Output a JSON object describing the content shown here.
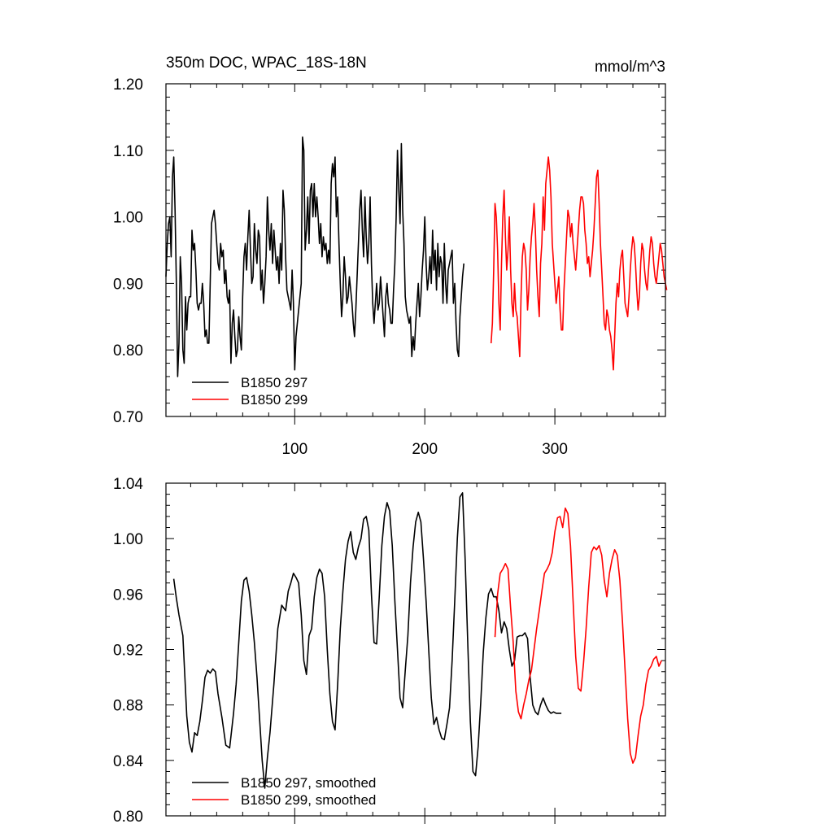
{
  "chart_data": [
    {
      "type": "line",
      "title": "350m DOC, WPAC_18S-18N",
      "units": "mmol/m^3",
      "xlim": [
        1,
        385
      ],
      "ylim": [
        0.7,
        1.2
      ],
      "yticks": [
        "0.70",
        "0.80",
        "0.90",
        "1.00",
        "1.10",
        "1.20"
      ],
      "xticks": [
        "100",
        "200",
        "300"
      ],
      "legend_position": "bottom-left",
      "series": [
        {
          "name": "B1850 297",
          "color": "#000000",
          "x_start": 1,
          "values": [
            0.91,
            0.96,
            0.99,
            1.0,
            0.94,
            1.06,
            1.09,
            1.01,
            0.9,
            0.76,
            0.81,
            0.94,
            0.9,
            0.8,
            0.78,
            0.88,
            0.83,
            0.87,
            0.88,
            0.88,
            0.98,
            0.95,
            0.96,
            0.92,
            0.87,
            0.86,
            0.87,
            0.87,
            0.9,
            0.87,
            0.82,
            0.83,
            0.81,
            0.81,
            0.9,
            0.99,
            1.0,
            1.01,
            0.99,
            0.96,
            0.93,
            0.92,
            0.96,
            0.94,
            0.95,
            0.9,
            0.92,
            0.88,
            0.87,
            0.89,
            0.78,
            0.84,
            0.86,
            0.82,
            0.79,
            0.8,
            0.85,
            0.82,
            0.8,
            0.88,
            0.94,
            0.96,
            0.92,
            0.97,
            1.01,
            0.95,
            0.9,
            0.91,
            0.99,
            0.95,
            0.93,
            0.98,
            0.97,
            0.89,
            0.92,
            0.87,
            0.9,
            0.94,
            1.03,
            0.98,
            0.95,
            0.99,
            0.93,
            0.98,
            0.95,
            0.92,
            0.94,
            0.9,
            0.96,
            0.92,
            1.04,
            1.01,
            0.94,
            0.89,
            0.88,
            0.87,
            0.86,
            0.92,
            0.87,
            0.77,
            0.82,
            0.84,
            0.86,
            0.88,
            0.9,
            1.12,
            1.1,
            0.95,
            0.98,
            1.03,
            0.96,
            1.04,
            1.05,
            1.0,
            1.05,
            1.0,
            1.03,
            1.0,
            0.96,
            0.99,
            0.94,
            0.97,
            0.95,
            0.96,
            0.93,
            0.95,
            0.93,
            1.05,
            1.08,
            1.06,
            1.09,
            1.0,
            1.03,
            0.96,
            0.9,
            0.85,
            0.88,
            0.94,
            0.91,
            0.87,
            0.88,
            0.91,
            0.89,
            0.87,
            0.84,
            0.82,
            0.86,
            0.91,
            0.96,
            1.01,
            1.04,
            0.98,
            0.94,
            1.03,
            0.97,
            0.93,
            0.96,
            1.03,
            0.93,
            0.87,
            0.84,
            0.87,
            0.9,
            0.86,
            0.87,
            0.91,
            0.88,
            0.85,
            0.82,
            0.88,
            0.9,
            0.87,
            0.86,
            0.84,
            0.84,
            0.89,
            0.93,
            1.0,
            1.1,
            1.04,
            0.99,
            1.11,
            1.01,
            0.96,
            0.88,
            0.86,
            0.85,
            0.84,
            0.85,
            0.79,
            0.82,
            0.8,
            0.84,
            0.87,
            0.9,
            0.85,
            0.88,
            0.92,
            0.95,
            1.0,
            0.93,
            0.89,
            0.91,
            0.94,
            0.9,
            0.98,
            0.92,
            0.95,
            0.89,
            0.96,
            0.91,
            0.94,
            0.93,
            0.87,
            0.96,
            0.9,
            0.87,
            0.92,
            0.93,
            0.94,
            0.95,
            0.87,
            0.9,
            0.84,
            0.8,
            0.79,
            0.85,
            0.88,
            0.91,
            0.93
          ]
        },
        {
          "name": "B1850 299",
          "color": "#ff0000",
          "x_start": 251,
          "values": [
            0.81,
            0.84,
            0.92,
            1.02,
            1.0,
            0.95,
            0.87,
            0.83,
            0.93,
            1.0,
            1.04,
            0.97,
            0.92,
            0.95,
            1.0,
            0.92,
            0.87,
            0.85,
            0.9,
            0.86,
            0.85,
            0.82,
            0.79,
            0.88,
            0.94,
            0.96,
            0.95,
            0.92,
            0.86,
            0.89,
            0.94,
            0.97,
            0.99,
            1.02,
            0.98,
            0.92,
            0.88,
            0.85,
            0.93,
            0.96,
            1.03,
            0.98,
            1.05,
            1.07,
            1.09,
            1.07,
            1.03,
            0.96,
            0.93,
            0.9,
            0.87,
            0.89,
            0.91,
            0.86,
            0.83,
            0.83,
            0.89,
            0.93,
            0.97,
            1.01,
            1.0,
            0.97,
            0.99,
            0.96,
            0.94,
            0.92,
            0.95,
            0.98,
            1.01,
            1.03,
            1.03,
            1.02,
            0.98,
            0.96,
            0.93,
            0.94,
            0.91,
            0.93,
            0.95,
            0.98,
            1.02,
            1.06,
            1.07,
            1.02,
            0.96,
            0.92,
            0.88,
            0.84,
            0.83,
            0.86,
            0.85,
            0.83,
            0.82,
            0.8,
            0.77,
            0.82,
            0.87,
            0.9,
            0.88,
            0.92,
            0.94,
            0.95,
            0.91,
            0.87,
            0.86,
            0.85,
            0.88,
            0.92,
            0.95,
            0.97,
            0.96,
            0.93,
            0.89,
            0.86,
            0.88,
            0.93,
            0.96,
            0.95,
            0.92,
            0.9,
            0.89,
            0.92,
            0.95,
            0.97,
            0.96,
            0.93,
            0.91,
            0.9,
            0.92,
            0.94,
            0.96,
            0.95,
            0.93,
            0.91,
            0.9,
            0.89
          ]
        }
      ]
    },
    {
      "type": "line",
      "title": "",
      "xlim": [
        1,
        385
      ],
      "ylim": [
        0.8,
        1.04
      ],
      "yticks": [
        "0.80",
        "0.84",
        "0.88",
        "0.92",
        "0.96",
        "1.00",
        "1.04"
      ],
      "xticks": [],
      "legend_position": "bottom-left",
      "series": [
        {
          "name": "B1850 297, smoothed",
          "color": "#000000",
          "x": [
            7,
            9,
            11,
            14,
            17,
            19,
            21,
            23,
            25,
            27,
            29,
            31,
            33,
            35,
            37,
            39,
            41,
            44,
            47,
            50,
            53,
            55,
            57,
            59,
            61,
            63,
            65,
            67,
            69,
            71,
            73,
            75,
            77,
            79,
            81,
            84,
            87,
            90,
            93,
            95,
            97,
            99,
            101,
            103,
            105,
            107,
            109,
            111,
            113,
            115,
            117,
            119,
            121,
            123,
            125,
            127,
            129,
            131,
            133,
            135,
            137,
            139,
            141,
            143,
            145,
            147,
            149,
            151,
            153,
            155,
            157,
            159,
            161,
            163,
            165,
            167,
            169,
            171,
            173,
            175,
            177,
            179,
            181,
            183,
            185,
            187,
            189,
            191,
            193,
            195,
            197,
            199,
            201,
            203,
            205,
            207,
            209,
            211,
            213,
            215,
            217,
            219,
            221,
            223,
            225,
            227,
            229,
            231,
            233,
            235,
            237,
            239,
            241,
            243,
            245,
            247,
            249,
            251,
            253,
            255,
            257,
            259,
            261,
            263,
            265,
            267,
            269,
            271,
            273,
            275,
            277,
            279,
            281,
            283,
            285,
            287,
            289,
            291,
            293,
            295,
            297,
            299,
            301,
            303,
            305
          ],
          "values": [
            0.971,
            0.957,
            0.945,
            0.93,
            0.872,
            0.853,
            0.846,
            0.86,
            0.858,
            0.868,
            0.883,
            0.9,
            0.905,
            0.903,
            0.906,
            0.904,
            0.888,
            0.871,
            0.851,
            0.849,
            0.874,
            0.895,
            0.925,
            0.955,
            0.97,
            0.972,
            0.962,
            0.945,
            0.925,
            0.9,
            0.87,
            0.84,
            0.82,
            0.842,
            0.86,
            0.895,
            0.935,
            0.952,
            0.948,
            0.962,
            0.968,
            0.975,
            0.972,
            0.968,
            0.945,
            0.912,
            0.902,
            0.93,
            0.935,
            0.958,
            0.972,
            0.978,
            0.975,
            0.958,
            0.92,
            0.888,
            0.868,
            0.862,
            0.895,
            0.935,
            0.962,
            0.985,
            0.998,
            1.005,
            0.99,
            0.985,
            0.994,
            1.0,
            1.014,
            1.016,
            1.006,
            0.96,
            0.925,
            0.924,
            0.958,
            0.995,
            1.016,
            1.026,
            1.02,
            0.995,
            0.955,
            0.92,
            0.885,
            0.878,
            0.905,
            0.93,
            0.968,
            0.994,
            1.012,
            1.019,
            1.012,
            0.985,
            0.955,
            0.92,
            0.885,
            0.866,
            0.871,
            0.862,
            0.856,
            0.855,
            0.866,
            0.878,
            0.912,
            0.955,
            1.0,
            1.03,
            1.033,
            0.985,
            0.925,
            0.868,
            0.832,
            0.829,
            0.85,
            0.881,
            0.918,
            0.943,
            0.96,
            0.964,
            0.958,
            0.958,
            0.948,
            0.932,
            0.94,
            0.935,
            0.92,
            0.908,
            0.912,
            0.929,
            0.93,
            0.93,
            0.932,
            0.928,
            0.9,
            0.88,
            0.875,
            0.873,
            0.88,
            0.885,
            0.88,
            0.876,
            0.874,
            0.875,
            0.874,
            0.874,
            0.874
          ]
        },
        {
          "name": "B1850 299, smoothed",
          "color": "#ff0000",
          "x": [
            254,
            256,
            258,
            260,
            262,
            264,
            266,
            268,
            270,
            272,
            274,
            276,
            278,
            280,
            282,
            284,
            286,
            288,
            290,
            292,
            294,
            296,
            298,
            300,
            302,
            304,
            306,
            308,
            310,
            312,
            314,
            316,
            318,
            320,
            322,
            324,
            326,
            328,
            330,
            332,
            334,
            336,
            338,
            340,
            342,
            344,
            346,
            348,
            350,
            352,
            354,
            356,
            358,
            360,
            362,
            364,
            366,
            368,
            370,
            372,
            374,
            376,
            378,
            380,
            382
          ],
          "values": [
            0.929,
            0.96,
            0.975,
            0.978,
            0.982,
            0.978,
            0.95,
            0.925,
            0.89,
            0.875,
            0.87,
            0.88,
            0.888,
            0.898,
            0.905,
            0.92,
            0.935,
            0.948,
            0.962,
            0.975,
            0.978,
            0.982,
            0.99,
            1.005,
            1.015,
            1.016,
            1.008,
            1.022,
            1.018,
            0.995,
            0.955,
            0.915,
            0.892,
            0.89,
            0.91,
            0.935,
            0.965,
            0.99,
            0.994,
            0.992,
            0.995,
            0.988,
            0.97,
            0.958,
            0.975,
            0.985,
            0.992,
            0.988,
            0.97,
            0.94,
            0.905,
            0.87,
            0.845,
            0.838,
            0.842,
            0.858,
            0.872,
            0.88,
            0.895,
            0.905,
            0.908,
            0.913,
            0.915,
            0.908,
            0.912
          ]
        }
      ]
    }
  ]
}
